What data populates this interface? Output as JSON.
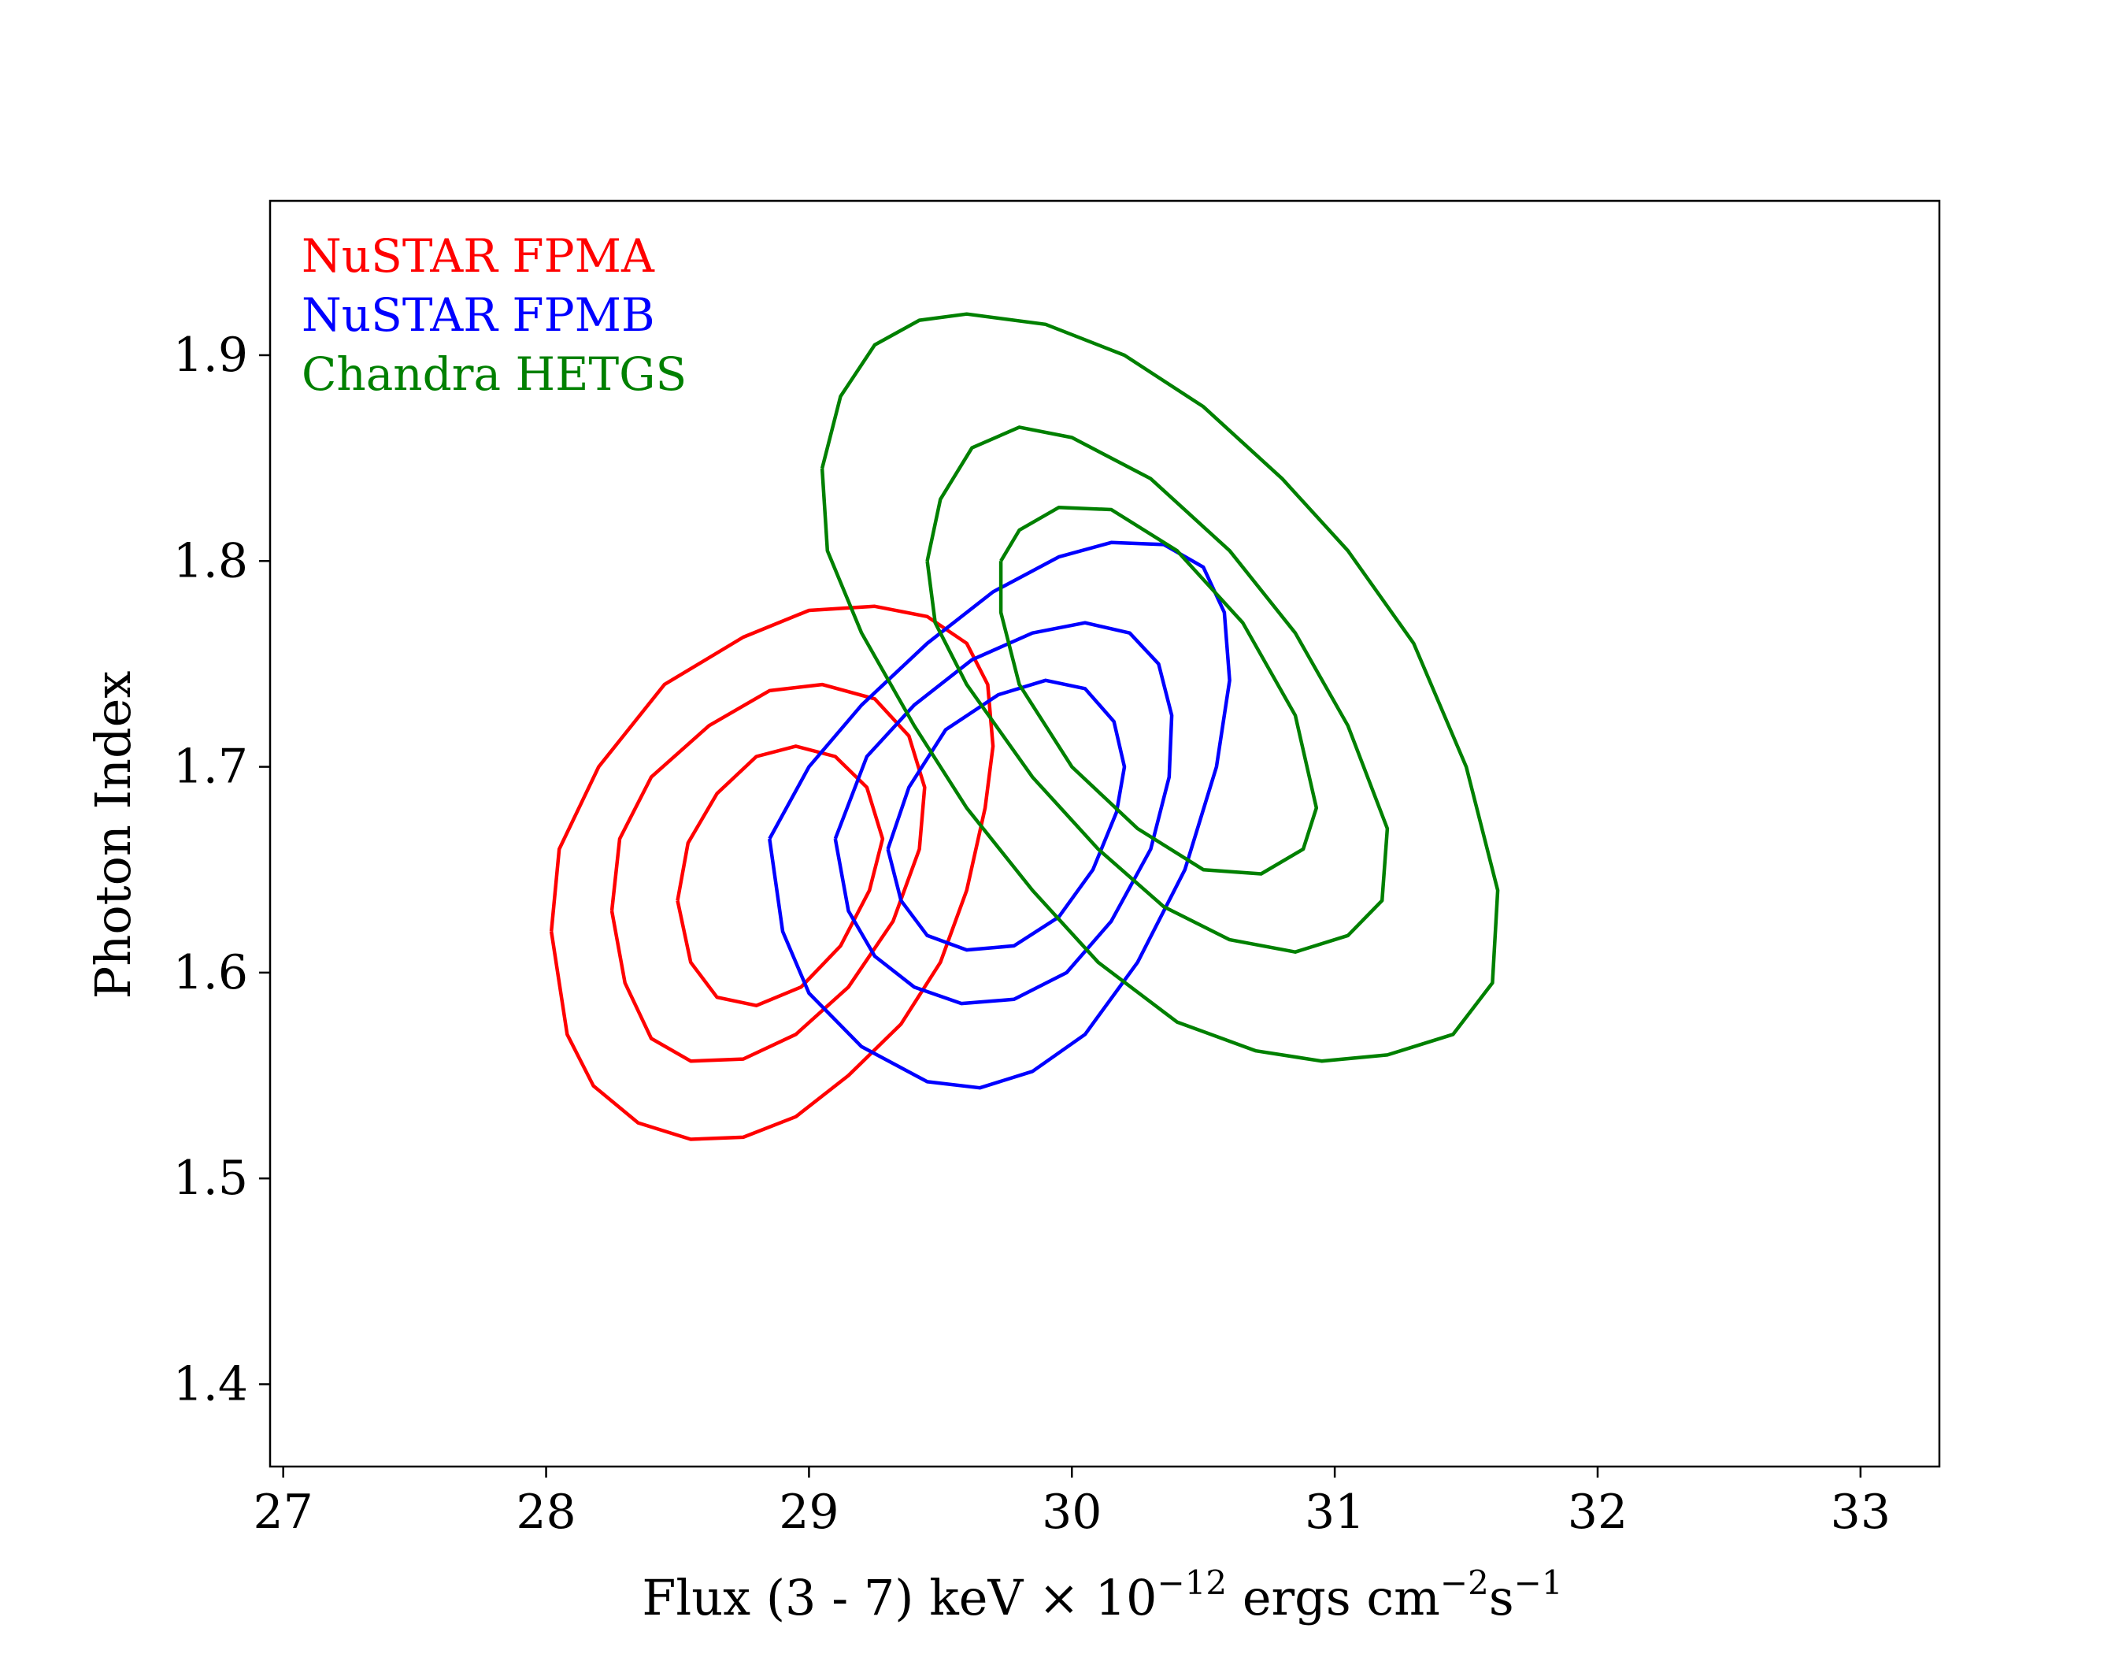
{
  "chart_data": {
    "type": "contour",
    "xlabel": {
      "prefix": "Flux (3 - 7) keV × 10",
      "exp1": "−12",
      "mid": " ergs cm",
      "exp2": "−2",
      "mid2": "s",
      "exp3": "−1"
    },
    "ylabel": "Photon Index",
    "xlim": [
      26.95,
      33.3
    ],
    "ylim": [
      1.36,
      1.975
    ],
    "xticks": [
      27,
      28,
      29,
      30,
      31,
      32,
      33
    ],
    "xtick_labels": [
      "27",
      "28",
      "29",
      "30",
      "31",
      "32",
      "33"
    ],
    "yticks": [
      1.4,
      1.5,
      1.6,
      1.7,
      1.8,
      1.9
    ],
    "ytick_labels": [
      "1.4",
      "1.5",
      "1.6",
      "1.7",
      "1.8",
      "1.9"
    ],
    "legend": [
      {
        "label": "NuSTAR FPMA",
        "color": "#ff0000"
      },
      {
        "label": "NuSTAR FPMB",
        "color": "#0000ff"
      },
      {
        "label": "Chandra HETGS",
        "color": "#008000"
      }
    ],
    "series": [
      {
        "name": "NuSTAR FPMA",
        "color": "#ff0000",
        "contours": [
          [
            [
              28.02,
              1.62
            ],
            [
              28.08,
              1.57
            ],
            [
              28.18,
              1.545
            ],
            [
              28.35,
              1.527
            ],
            [
              28.55,
              1.519
            ],
            [
              28.75,
              1.52
            ],
            [
              28.95,
              1.53
            ],
            [
              29.15,
              1.55
            ],
            [
              29.35,
              1.575
            ],
            [
              29.5,
              1.605
            ],
            [
              29.6,
              1.64
            ],
            [
              29.67,
              1.68
            ],
            [
              29.7,
              1.71
            ],
            [
              29.68,
              1.74
            ],
            [
              29.6,
              1.76
            ],
            [
              29.45,
              1.773
            ],
            [
              29.25,
              1.778
            ],
            [
              29.0,
              1.776
            ],
            [
              28.75,
              1.763
            ],
            [
              28.45,
              1.74
            ],
            [
              28.2,
              1.7
            ],
            [
              28.05,
              1.66
            ],
            [
              28.02,
              1.62
            ]
          ],
          [
            [
              28.25,
              1.63
            ],
            [
              28.3,
              1.595
            ],
            [
              28.4,
              1.568
            ],
            [
              28.55,
              1.557
            ],
            [
              28.75,
              1.558
            ],
            [
              28.95,
              1.57
            ],
            [
              29.15,
              1.593
            ],
            [
              29.32,
              1.625
            ],
            [
              29.42,
              1.66
            ],
            [
              29.44,
              1.69
            ],
            [
              29.38,
              1.715
            ],
            [
              29.25,
              1.733
            ],
            [
              29.05,
              1.74
            ],
            [
              28.85,
              1.737
            ],
            [
              28.62,
              1.72
            ],
            [
              28.4,
              1.695
            ],
            [
              28.28,
              1.665
            ],
            [
              28.25,
              1.63
            ]
          ],
          [
            [
              28.5,
              1.635
            ],
            [
              28.55,
              1.605
            ],
            [
              28.65,
              1.588
            ],
            [
              28.8,
              1.584
            ],
            [
              28.97,
              1.593
            ],
            [
              29.12,
              1.613
            ],
            [
              29.23,
              1.64
            ],
            [
              29.28,
              1.665
            ],
            [
              29.22,
              1.69
            ],
            [
              29.1,
              1.705
            ],
            [
              28.95,
              1.71
            ],
            [
              28.8,
              1.705
            ],
            [
              28.65,
              1.687
            ],
            [
              28.54,
              1.663
            ],
            [
              28.5,
              1.635
            ]
          ]
        ]
      },
      {
        "name": "NuSTAR FPMB",
        "color": "#0000ff",
        "contours": [
          [
            [
              28.85,
              1.665
            ],
            [
              28.9,
              1.62
            ],
            [
              29.0,
              1.59
            ],
            [
              29.2,
              1.564
            ],
            [
              29.45,
              1.547
            ],
            [
              29.65,
              1.544
            ],
            [
              29.85,
              1.552
            ],
            [
              30.05,
              1.57
            ],
            [
              30.25,
              1.605
            ],
            [
              30.43,
              1.65
            ],
            [
              30.55,
              1.7
            ],
            [
              30.6,
              1.742
            ],
            [
              30.58,
              1.775
            ],
            [
              30.5,
              1.797
            ],
            [
              30.35,
              1.808
            ],
            [
              30.15,
              1.809
            ],
            [
              29.95,
              1.802
            ],
            [
              29.7,
              1.785
            ],
            [
              29.45,
              1.76
            ],
            [
              29.2,
              1.73
            ],
            [
              29.0,
              1.7
            ],
            [
              28.85,
              1.665
            ]
          ],
          [
            [
              29.1,
              1.665
            ],
            [
              29.15,
              1.63
            ],
            [
              29.25,
              1.608
            ],
            [
              29.4,
              1.593
            ],
            [
              29.58,
              1.585
            ],
            [
              29.78,
              1.587
            ],
            [
              29.98,
              1.6
            ],
            [
              30.15,
              1.625
            ],
            [
              30.3,
              1.66
            ],
            [
              30.37,
              1.695
            ],
            [
              30.38,
              1.725
            ],
            [
              30.33,
              1.75
            ],
            [
              30.22,
              1.765
            ],
            [
              30.05,
              1.77
            ],
            [
              29.85,
              1.765
            ],
            [
              29.62,
              1.752
            ],
            [
              29.4,
              1.73
            ],
            [
              29.22,
              1.705
            ],
            [
              29.1,
              1.665
            ]
          ],
          [
            [
              29.3,
              1.66
            ],
            [
              29.35,
              1.635
            ],
            [
              29.45,
              1.618
            ],
            [
              29.6,
              1.611
            ],
            [
              29.78,
              1.613
            ],
            [
              29.95,
              1.627
            ],
            [
              30.08,
              1.65
            ],
            [
              30.17,
              1.678
            ],
            [
              30.2,
              1.7
            ],
            [
              30.16,
              1.722
            ],
            [
              30.05,
              1.738
            ],
            [
              29.9,
              1.742
            ],
            [
              29.72,
              1.735
            ],
            [
              29.52,
              1.718
            ],
            [
              29.38,
              1.69
            ],
            [
              29.3,
              1.66
            ]
          ]
        ]
      },
      {
        "name": "Chandra HETGS",
        "color": "#008000",
        "contours": [
          [
            [
              29.05,
              1.845
            ],
            [
              29.12,
              1.88
            ],
            [
              29.25,
              1.905
            ],
            [
              29.42,
              1.917
            ],
            [
              29.6,
              1.92
            ],
            [
              29.9,
              1.915
            ],
            [
              30.2,
              1.9
            ],
            [
              30.5,
              1.875
            ],
            [
              30.8,
              1.84
            ],
            [
              31.05,
              1.805
            ],
            [
              31.3,
              1.76
            ],
            [
              31.5,
              1.7
            ],
            [
              31.62,
              1.64
            ],
            [
              31.6,
              1.595
            ],
            [
              31.45,
              1.57
            ],
            [
              31.2,
              1.56
            ],
            [
              30.95,
              1.557
            ],
            [
              30.7,
              1.562
            ],
            [
              30.4,
              1.576
            ],
            [
              30.1,
              1.605
            ],
            [
              29.85,
              1.64
            ],
            [
              29.6,
              1.68
            ],
            [
              29.4,
              1.72
            ],
            [
              29.2,
              1.765
            ],
            [
              29.07,
              1.805
            ],
            [
              29.05,
              1.845
            ]
          ],
          [
            [
              29.45,
              1.8
            ],
            [
              29.5,
              1.83
            ],
            [
              29.62,
              1.855
            ],
            [
              29.8,
              1.865
            ],
            [
              30.0,
              1.86
            ],
            [
              30.3,
              1.84
            ],
            [
              30.6,
              1.805
            ],
            [
              30.85,
              1.765
            ],
            [
              31.05,
              1.72
            ],
            [
              31.2,
              1.67
            ],
            [
              31.18,
              1.635
            ],
            [
              31.05,
              1.618
            ],
            [
              30.85,
              1.61
            ],
            [
              30.6,
              1.616
            ],
            [
              30.35,
              1.632
            ],
            [
              30.1,
              1.66
            ],
            [
              29.85,
              1.695
            ],
            [
              29.6,
              1.74
            ],
            [
              29.48,
              1.77
            ],
            [
              29.45,
              1.8
            ]
          ],
          [
            [
              29.73,
              1.8
            ],
            [
              29.8,
              1.815
            ],
            [
              29.95,
              1.826
            ],
            [
              30.15,
              1.825
            ],
            [
              30.4,
              1.805
            ],
            [
              30.65,
              1.77
            ],
            [
              30.85,
              1.725
            ],
            [
              30.93,
              1.68
            ],
            [
              30.88,
              1.66
            ],
            [
              30.72,
              1.648
            ],
            [
              30.5,
              1.65
            ],
            [
              30.25,
              1.67
            ],
            [
              30.0,
              1.7
            ],
            [
              29.8,
              1.74
            ],
            [
              29.73,
              1.775
            ],
            [
              29.73,
              1.8
            ]
          ]
        ]
      }
    ]
  }
}
